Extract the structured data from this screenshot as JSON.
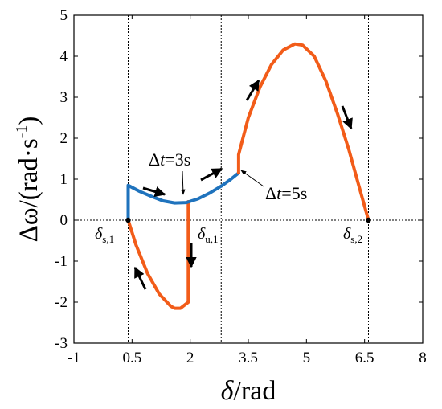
{
  "chart_data": {
    "type": "line",
    "xlabel": {
      "symbol": "δ",
      "unit": "/rad"
    },
    "ylabel": {
      "symbol": "Δω",
      "unit": "/(rad·s",
      "sup": "-1",
      "close": ")"
    },
    "xlim": [
      -1,
      8
    ],
    "ylim": [
      -3,
      5
    ],
    "xticks": [
      -1,
      0.5,
      2,
      3.5,
      5,
      6.5,
      8
    ],
    "xtick_labels": [
      "-1",
      "0.5",
      "2",
      "3.5",
      "5",
      "6.5",
      "8"
    ],
    "yticks": [
      -3,
      -2,
      -1,
      0,
      1,
      2,
      3,
      4,
      5
    ],
    "ytick_labels": [
      "-3",
      "-2",
      "-1",
      "0",
      "1",
      "2",
      "3",
      "4",
      "5"
    ],
    "grid": false,
    "reference_lines": {
      "vertical": [
        0.4,
        2.8,
        6.6
      ],
      "horizontal": [
        0
      ]
    },
    "series": [
      {
        "color": "#F25C19",
        "points": [
          [
            0.4,
            0
          ],
          [
            0.6,
            -0.6
          ],
          [
            0.9,
            -1.3
          ],
          [
            1.2,
            -1.8
          ],
          [
            1.5,
            -2.1
          ],
          [
            1.6,
            -2.15
          ],
          [
            1.75,
            -2.15
          ],
          [
            1.95,
            -2.0
          ],
          [
            1.95,
            0.45
          ]
        ]
      },
      {
        "color": "#1F73BD",
        "points": [
          [
            0.4,
            0
          ],
          [
            0.4,
            0.85
          ],
          [
            0.7,
            0.7
          ],
          [
            1.0,
            0.58
          ],
          [
            1.3,
            0.47
          ],
          [
            1.6,
            0.42
          ],
          [
            1.9,
            0.43
          ],
          [
            2.2,
            0.52
          ],
          [
            2.5,
            0.66
          ],
          [
            2.8,
            0.83
          ],
          [
            3.05,
            1.0
          ],
          [
            3.25,
            1.15
          ]
        ]
      },
      {
        "color": "#F25C19",
        "points": [
          [
            3.25,
            1.15
          ],
          [
            3.25,
            1.6
          ],
          [
            3.5,
            2.5
          ],
          [
            3.8,
            3.25
          ],
          [
            4.1,
            3.8
          ],
          [
            4.4,
            4.15
          ],
          [
            4.7,
            4.3
          ],
          [
            4.9,
            4.27
          ],
          [
            5.2,
            4.0
          ],
          [
            5.5,
            3.4
          ],
          [
            5.8,
            2.6
          ],
          [
            6.1,
            1.7
          ],
          [
            6.35,
            0.85
          ],
          [
            6.6,
            0
          ]
        ]
      }
    ],
    "points_marked": [
      [
        0.4,
        0
      ],
      [
        6.6,
        0
      ]
    ],
    "annotations": {
      "ds1": {
        "main": "δ",
        "sub": "s,1"
      },
      "du1": {
        "main": "δ",
        "sub": "u,1"
      },
      "ds2": {
        "main": "δ",
        "sub": "s,2"
      },
      "dt3": {
        "pre": "Δ",
        "italic": "t",
        "post": "=3s"
      },
      "dt5": {
        "pre": "Δ",
        "italic": "t",
        "post": "=5s"
      }
    },
    "arrows": [
      {
        "name": "arrow-lower-loop",
        "color": "#000000"
      },
      {
        "name": "arrow-blue-left",
        "color": "#000000"
      },
      {
        "name": "arrow-blue-right",
        "color": "#000000"
      },
      {
        "name": "arrow-orange-down",
        "color": "#000000"
      },
      {
        "name": "arrow-rising",
        "color": "#000000"
      },
      {
        "name": "arrow-falling",
        "color": "#000000"
      }
    ]
  }
}
